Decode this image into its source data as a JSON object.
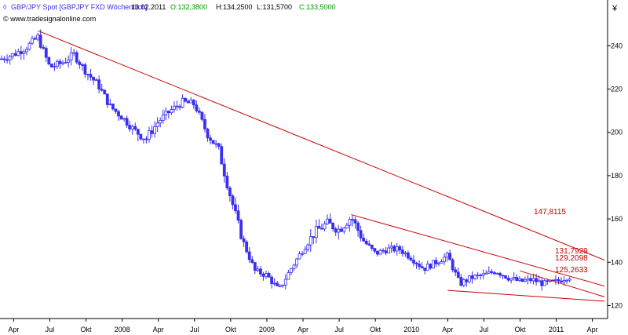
{
  "header": {
    "title": "GBP/JPY Spot [GBPJPY FXD  Wöchentlich]",
    "date": "13.02.2011",
    "open": "O:132,3800",
    "high": "H:134,2500",
    "low": "L:131,5700",
    "close": "C:133,5000",
    "source": "© www.tradesignalonline.com",
    "colors": {
      "title": "#3b2ff0",
      "open": "#009900",
      "close": "#009900",
      "text": "#000000"
    }
  },
  "chart_data": {
    "type": "candlestick",
    "title": "GBP/JPY Spot [GBPJPY FXD  Wöchentlich]",
    "frequency": "weekly",
    "x_tick_labels": [
      "Apr",
      "Jul",
      "Okt",
      "2008",
      "Apr",
      "Jul",
      "Okt",
      "2009",
      "Apr",
      "Jul",
      "Okt",
      "2010",
      "Apr",
      "Jul",
      "Okt",
      "2011",
      "Apr"
    ],
    "y_ticks": [
      120,
      140,
      160,
      180,
      200,
      220,
      240
    ],
    "ylim": [
      114,
      251
    ],
    "y_axis_position": "right",
    "grid": false,
    "series": [
      {
        "kind": "close_path_approx",
        "x": [
          "2007-03",
          "2007-04",
          "2007-05",
          "2007-06",
          "2007-07",
          "2007-08",
          "2007-09",
          "2007-10",
          "2007-11",
          "2007-12",
          "2008-01",
          "2008-02",
          "2008-03",
          "2008-04",
          "2008-05",
          "2008-06",
          "2008-07",
          "2008-08",
          "2008-09",
          "2008-10",
          "2008-11",
          "2008-12",
          "2009-01",
          "2009-02",
          "2009-03",
          "2009-04",
          "2009-05",
          "2009-06",
          "2009-07",
          "2009-08",
          "2009-09",
          "2009-10",
          "2009-11",
          "2009-12",
          "2010-01",
          "2010-02",
          "2010-03",
          "2010-04",
          "2010-05",
          "2010-06",
          "2010-07",
          "2010-08",
          "2010-09",
          "2010-10",
          "2010-11",
          "2010-12",
          "2011-01",
          "2011-02"
        ],
        "values": [
          234,
          236,
          239,
          244,
          230,
          232,
          236,
          228,
          222,
          212,
          207,
          201,
          197,
          205,
          210,
          214,
          213,
          200,
          192,
          170,
          150,
          136,
          134,
          127,
          137,
          146,
          154,
          158,
          155,
          161,
          150,
          144,
          146,
          146,
          142,
          137,
          140,
          143,
          130,
          133,
          134,
          136,
          133,
          131,
          132,
          130,
          131,
          133.5
        ]
      }
    ],
    "trendlines": [
      {
        "label": "147,8115",
        "from": [
          "2007-06",
          247
        ],
        "to": [
          "2011-05",
          141
        ],
        "color": "#cc0000"
      },
      {
        "label": "131,7929",
        "from": [
          "2009-08",
          162
        ],
        "to": [
          "2011-05",
          129
        ],
        "color": "#cc0000"
      },
      {
        "label": "129,2098",
        "from": [
          "2010-10",
          136
        ],
        "to": [
          "2011-05",
          124
        ],
        "color": "#cc0000"
      },
      {
        "label": "125,2633",
        "from": [
          "2010-04",
          127
        ],
        "to": [
          "2011-05",
          122
        ],
        "color": "#cc0000"
      }
    ],
    "colors": {
      "candles": "#3b2ff0",
      "trendline": "#cc0000",
      "level_label": "#cc0000"
    }
  }
}
